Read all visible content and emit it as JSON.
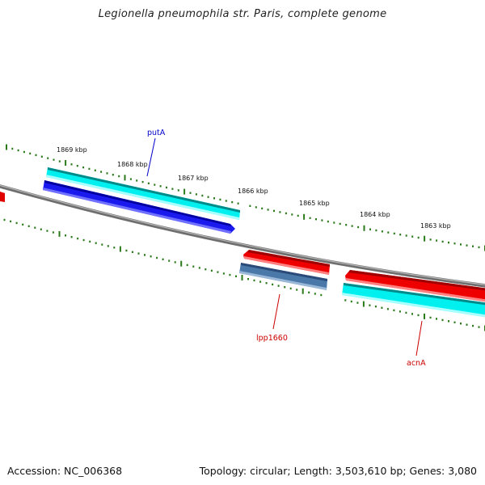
{
  "title": "Legionella pneumophila str. Paris, complete genome",
  "footer": {
    "accession": "Accession: NC_006368",
    "topology": "Topology: circular; Length: 3,503,610 bp; Genes: 3,080"
  },
  "colors": {
    "backbone": "#808080",
    "ticks": "#2a7a1a",
    "forward_cds": "#00e5e5",
    "forward_gene": "#1010e0",
    "reverse_cds": "#e00000",
    "reverse_gene": "#4a78a8",
    "label_forward": "#0000cc",
    "label_reverse": "#cc0000"
  },
  "scale_labels": [
    "1869 kbp",
    "1868 kbp",
    "1867 kbp",
    "1866 kbp",
    "1865 kbp",
    "1864 kbp",
    "1863 kbp"
  ],
  "genes": [
    {
      "name": "putA",
      "strand": "forward"
    },
    {
      "name": "lpp1660",
      "strand": "reverse"
    },
    {
      "name": "acnA",
      "strand": "reverse"
    }
  ]
}
